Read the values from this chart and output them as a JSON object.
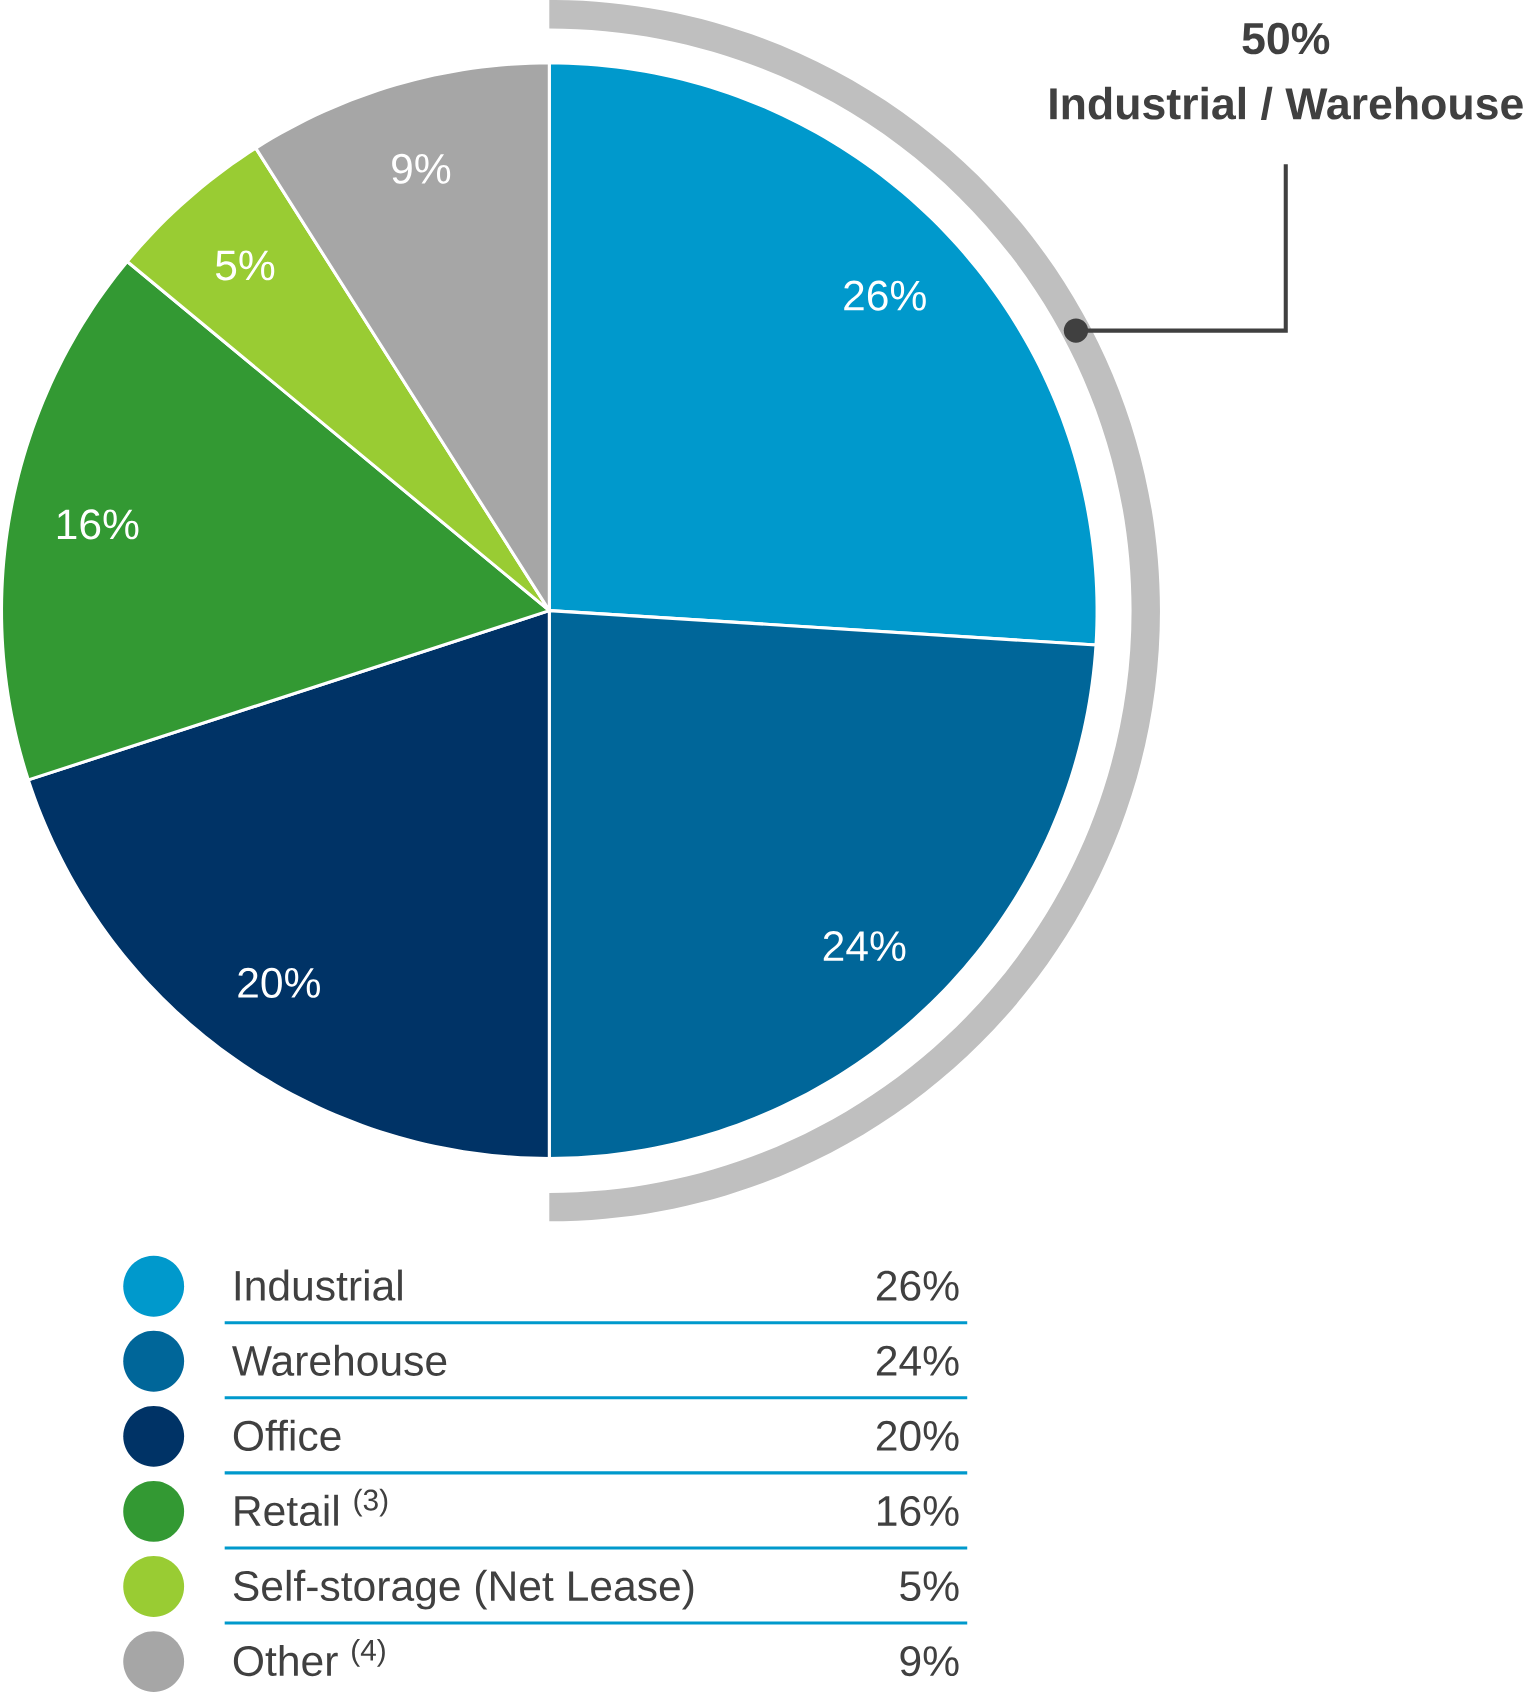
{
  "chart_data": {
    "type": "pie",
    "categories": [
      "Industrial",
      "Warehouse",
      "Office",
      "Retail $^{(3)}$",
      "Self-storage (Net Lease)",
      "Other $^{(4)}$"
    ],
    "values": [
      26,
      24,
      20,
      16,
      5,
      9
    ],
    "colors": [
      "#0099cc",
      "#006699",
      "#003366",
      "#339933",
      "#99cc33",
      "#a6a6a6"
    ],
    "value_labels": [
      "26%",
      "24%",
      "20%",
      "16%",
      "5%",
      "9%"
    ],
    "legend": "bottom",
    "annotations": [
      "50%",
      "Industrial / Warehouse"
    ]
  }
}
